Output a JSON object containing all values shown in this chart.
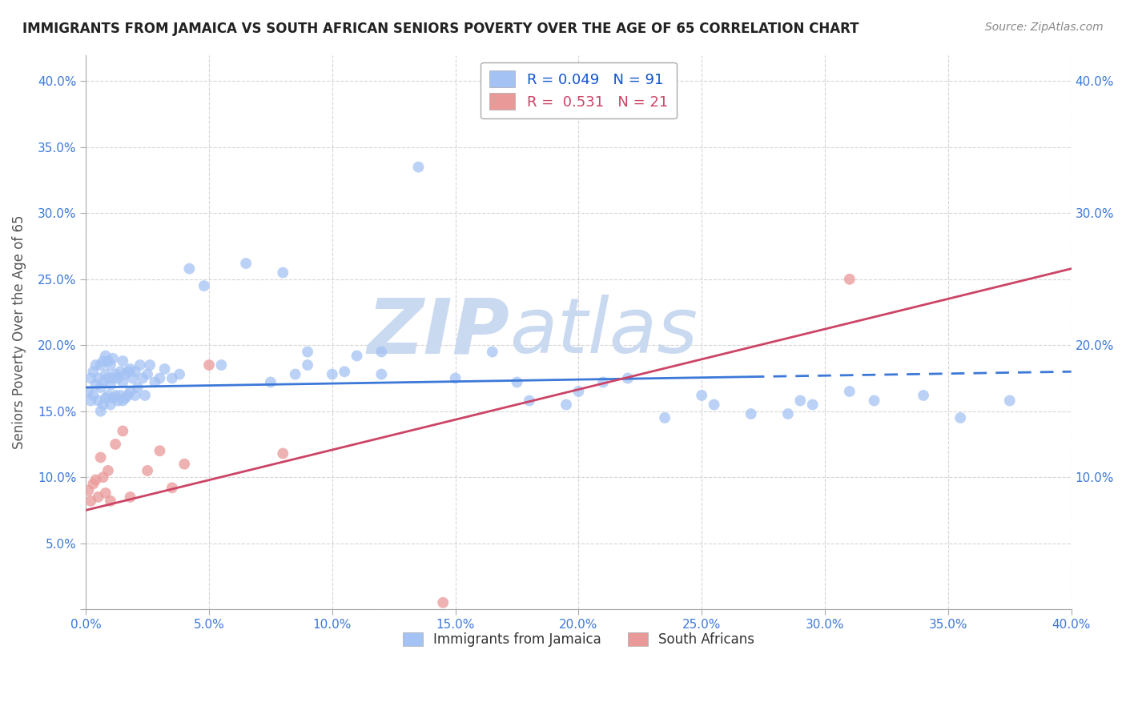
{
  "title": "IMMIGRANTS FROM JAMAICA VS SOUTH AFRICAN SENIORS POVERTY OVER THE AGE OF 65 CORRELATION CHART",
  "source": "Source: ZipAtlas.com",
  "ylabel": "Seniors Poverty Over the Age of 65",
  "xlim": [
    0.0,
    0.4
  ],
  "ylim": [
    0.0,
    0.42
  ],
  "xticks": [
    0.0,
    0.05,
    0.1,
    0.15,
    0.2,
    0.25,
    0.3,
    0.35,
    0.4
  ],
  "yticks": [
    0.0,
    0.05,
    0.1,
    0.15,
    0.2,
    0.25,
    0.3,
    0.35,
    0.4
  ],
  "jamaica_color": "#a4c2f4",
  "jamaica_color_line": "#3c78d8",
  "sa_color": "#ea9999",
  "sa_color_line": "#cc4466",
  "jamaica_R": 0.049,
  "jamaica_N": 91,
  "sa_R": 0.531,
  "sa_N": 21,
  "legend_R_color": "#1155cc",
  "legend_R2_color": "#cc4466",
  "watermark_zip": "ZIP",
  "watermark_atlas": "atlas",
  "watermark_color": "#c9d9f0",
  "background_color": "#ffffff",
  "jamaica_x": [
    0.001,
    0.002,
    0.002,
    0.003,
    0.003,
    0.004,
    0.004,
    0.005,
    0.005,
    0.006,
    0.006,
    0.006,
    0.007,
    0.007,
    0.007,
    0.008,
    0.008,
    0.008,
    0.009,
    0.009,
    0.009,
    0.01,
    0.01,
    0.01,
    0.011,
    0.011,
    0.011,
    0.012,
    0.012,
    0.013,
    0.013,
    0.014,
    0.014,
    0.015,
    0.015,
    0.015,
    0.016,
    0.016,
    0.017,
    0.017,
    0.018,
    0.018,
    0.019,
    0.02,
    0.02,
    0.021,
    0.022,
    0.023,
    0.024,
    0.025,
    0.026,
    0.028,
    0.03,
    0.032,
    0.035,
    0.038,
    0.042,
    0.048,
    0.055,
    0.065,
    0.075,
    0.08,
    0.085,
    0.09,
    0.1,
    0.11,
    0.12,
    0.135,
    0.15,
    0.165,
    0.18,
    0.195,
    0.21,
    0.235,
    0.255,
    0.285,
    0.295,
    0.32,
    0.34,
    0.355,
    0.375,
    0.09,
    0.105,
    0.12,
    0.175,
    0.2,
    0.22,
    0.25,
    0.27,
    0.29,
    0.31
  ],
  "jamaica_y": [
    0.165,
    0.158,
    0.175,
    0.162,
    0.18,
    0.17,
    0.185,
    0.158,
    0.175,
    0.15,
    0.168,
    0.185,
    0.155,
    0.172,
    0.188,
    0.16,
    0.178,
    0.192,
    0.162,
    0.175,
    0.188,
    0.155,
    0.17,
    0.185,
    0.16,
    0.175,
    0.19,
    0.162,
    0.178,
    0.158,
    0.175,
    0.162,
    0.18,
    0.158,
    0.172,
    0.188,
    0.16,
    0.178,
    0.162,
    0.18,
    0.165,
    0.182,
    0.175,
    0.162,
    0.18,
    0.168,
    0.185,
    0.175,
    0.162,
    0.178,
    0.185,
    0.172,
    0.175,
    0.182,
    0.175,
    0.178,
    0.258,
    0.245,
    0.185,
    0.262,
    0.172,
    0.255,
    0.178,
    0.195,
    0.178,
    0.192,
    0.178,
    0.335,
    0.175,
    0.195,
    0.158,
    0.155,
    0.172,
    0.145,
    0.155,
    0.148,
    0.155,
    0.158,
    0.162,
    0.145,
    0.158,
    0.185,
    0.18,
    0.195,
    0.172,
    0.165,
    0.175,
    0.162,
    0.148,
    0.158,
    0.165
  ],
  "sa_x": [
    0.001,
    0.002,
    0.003,
    0.004,
    0.005,
    0.006,
    0.007,
    0.008,
    0.009,
    0.01,
    0.012,
    0.015,
    0.018,
    0.025,
    0.03,
    0.035,
    0.04,
    0.05,
    0.08,
    0.31,
    0.145
  ],
  "sa_y": [
    0.09,
    0.082,
    0.095,
    0.098,
    0.085,
    0.115,
    0.1,
    0.088,
    0.105,
    0.082,
    0.125,
    0.135,
    0.085,
    0.105,
    0.12,
    0.092,
    0.11,
    0.185,
    0.118,
    0.25,
    0.005
  ],
  "jamaica_line_x0": 0.0,
  "jamaica_line_x_solid_end": 0.27,
  "jamaica_line_x1": 0.4,
  "jamaica_line_y0": 0.168,
  "jamaica_line_y1": 0.18,
  "sa_line_x0": 0.0,
  "sa_line_x1": 0.4,
  "sa_line_y0": 0.075,
  "sa_line_y1": 0.258
}
